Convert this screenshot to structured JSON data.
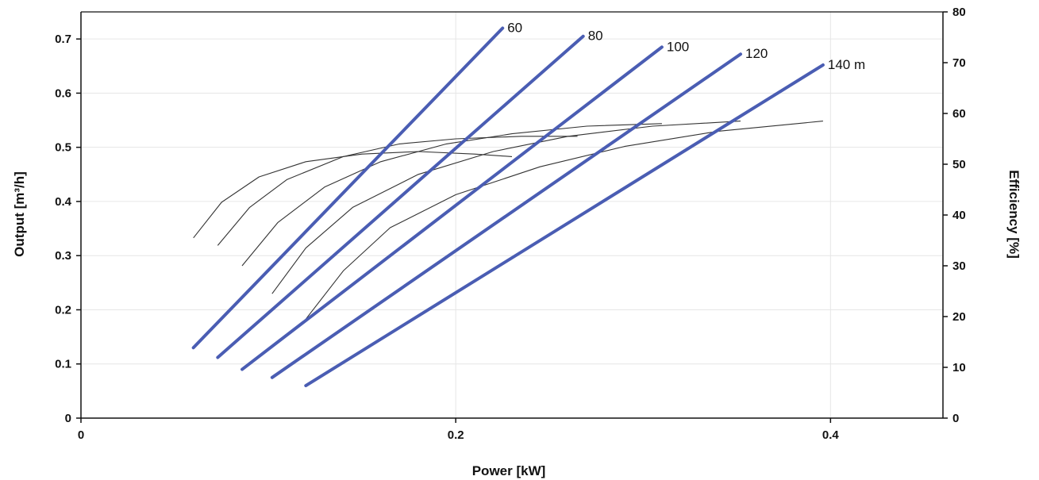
{
  "chart_data": {
    "type": "line",
    "title": "",
    "xlabel": "Power [kW]",
    "ylabel_left": "Output [m³/h]",
    "ylabel_right": "Efficiency [%]",
    "xlim": [
      0,
      0.46
    ],
    "ylim_left": [
      0,
      0.75
    ],
    "ylim_right": [
      0,
      80
    ],
    "x_ticks": [
      0,
      0.2,
      0.4
    ],
    "x_tick_labels": [
      "0",
      "0.2",
      "0.4"
    ],
    "y_left_ticks": [
      0,
      0.1,
      0.2,
      0.3,
      0.4,
      0.5,
      0.6,
      0.7
    ],
    "y_left_tick_labels": [
      "0",
      "0.1",
      "0.2",
      "0.3",
      "0.4",
      "0.5",
      "0.6",
      "0.7"
    ],
    "y_right_ticks": [
      0,
      10,
      20,
      30,
      40,
      50,
      60,
      70,
      80
    ],
    "y_right_tick_labels": [
      "0",
      "10",
      "20",
      "30",
      "40",
      "50",
      "60",
      "70",
      "80"
    ],
    "grid": true,
    "output_series": [
      {
        "name": "60",
        "color": "#4a5db3",
        "x": [
          0.06,
          0.225
        ],
        "y": [
          0.13,
          0.72
        ]
      },
      {
        "name": "80",
        "color": "#4a5db3",
        "x": [
          0.073,
          0.268
        ],
        "y": [
          0.112,
          0.705
        ]
      },
      {
        "name": "100",
        "color": "#4a5db3",
        "x": [
          0.086,
          0.31
        ],
        "y": [
          0.09,
          0.685
        ]
      },
      {
        "name": "120",
        "color": "#4a5db3",
        "x": [
          0.102,
          0.352
        ],
        "y": [
          0.075,
          0.672
        ]
      },
      {
        "name": "140 m",
        "color": "#4a5db3",
        "x": [
          0.12,
          0.396
        ],
        "y": [
          0.06,
          0.652
        ]
      }
    ],
    "efficiency_series": [
      {
        "color": "#333333",
        "x": [
          0.06,
          0.075,
          0.095,
          0.12,
          0.15,
          0.18,
          0.21,
          0.23
        ],
        "y": [
          35.5,
          42.5,
          47.5,
          50.5,
          52.0,
          52.5,
          52.0,
          51.5
        ]
      },
      {
        "color": "#333333",
        "x": [
          0.073,
          0.09,
          0.11,
          0.14,
          0.17,
          0.2,
          0.235,
          0.265
        ],
        "y": [
          34.0,
          41.5,
          47.0,
          51.5,
          54.0,
          55.0,
          55.5,
          55.5
        ]
      },
      {
        "color": "#333333",
        "x": [
          0.086,
          0.105,
          0.13,
          0.16,
          0.195,
          0.23,
          0.27,
          0.31
        ],
        "y": [
          30.0,
          38.5,
          45.5,
          50.5,
          54.0,
          56.0,
          57.5,
          58.0
        ]
      },
      {
        "color": "#333333",
        "x": [
          0.102,
          0.12,
          0.145,
          0.18,
          0.22,
          0.26,
          0.305,
          0.352
        ],
        "y": [
          24.5,
          33.5,
          41.5,
          48.0,
          52.5,
          55.5,
          57.5,
          58.5
        ]
      },
      {
        "color": "#333333",
        "x": [
          0.12,
          0.14,
          0.165,
          0.2,
          0.245,
          0.29,
          0.34,
          0.396
        ],
        "y": [
          19.5,
          29.0,
          37.5,
          44.0,
          49.5,
          53.5,
          56.5,
          58.5
        ]
      }
    ]
  },
  "colors": {
    "output_curve": "#4a5db3",
    "efficiency_curve": "#333333",
    "grid": "#e6e6e6",
    "axis": "#111111"
  }
}
